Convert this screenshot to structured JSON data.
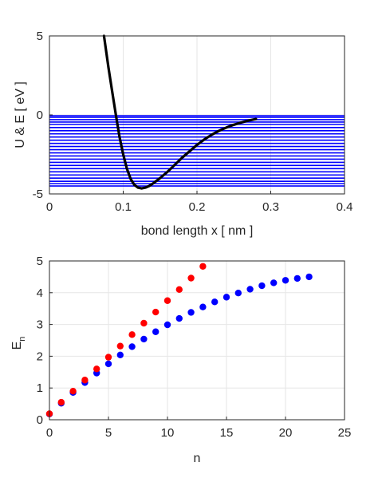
{
  "chart_data": [
    {
      "type": "line",
      "xlabel": "bond length x  [ nm ]",
      "ylabel": "U & E [ eV ]",
      "xlim": [
        0,
        0.4
      ],
      "ylim": [
        -5,
        5
      ],
      "xticks": [
        "0",
        "0.1",
        "0.2",
        "0.3",
        "0.4"
      ],
      "yticks": [
        "-5",
        "0",
        "5"
      ],
      "grid": true,
      "series": [
        {
          "kind": "potential-curve",
          "color": "#000000",
          "x": [
            0.074,
            0.08,
            0.085,
            0.09,
            0.095,
            0.1,
            0.105,
            0.11,
            0.115,
            0.12,
            0.125,
            0.13,
            0.135,
            0.14,
            0.15,
            0.16,
            0.17,
            0.18,
            0.19,
            0.2,
            0.21,
            0.22,
            0.23,
            0.24,
            0.25,
            0.26,
            0.27,
            0.28
          ],
          "y": [
            5.0,
            3.0,
            1.5,
            0.0,
            -1.4,
            -2.5,
            -3.4,
            -4.05,
            -4.42,
            -4.6,
            -4.65,
            -4.6,
            -4.5,
            -4.35,
            -4.0,
            -3.6,
            -3.15,
            -2.7,
            -2.3,
            -1.9,
            -1.55,
            -1.25,
            -1.0,
            -0.8,
            -0.62,
            -0.48,
            -0.36,
            -0.26
          ]
        }
      ],
      "energy_levels": {
        "color": "#0000ff",
        "x_range": [
          0,
          0.4
        ],
        "values": [
          -4.5,
          -4.35,
          -4.2,
          -4.0,
          -3.8,
          -3.6,
          -3.4,
          -3.2,
          -3.0,
          -2.8,
          -2.6,
          -2.4,
          -2.2,
          -2.0,
          -1.8,
          -1.6,
          -1.4,
          -1.2,
          -1.0,
          -0.8,
          -0.6,
          -0.45,
          -0.3,
          -0.15,
          -0.05
        ]
      }
    },
    {
      "type": "scatter",
      "xlabel": "n",
      "ylabel": "E",
      "ylabel_subscript": "n",
      "xlim": [
        0,
        25
      ],
      "ylim": [
        0,
        5
      ],
      "xticks": [
        "0",
        "5",
        "10",
        "15",
        "20",
        "25"
      ],
      "yticks": [
        "0",
        "1",
        "2",
        "3",
        "4",
        "5"
      ],
      "grid": true,
      "series": [
        {
          "color": "#0000ff",
          "x": [
            0,
            1,
            2,
            3,
            4,
            5,
            6,
            7,
            8,
            9,
            10,
            11,
            12,
            13,
            14,
            15,
            16,
            17,
            18,
            19,
            20,
            21,
            22
          ],
          "y": [
            0.18,
            0.52,
            0.86,
            1.17,
            1.47,
            1.76,
            2.04,
            2.3,
            2.54,
            2.77,
            2.99,
            3.19,
            3.38,
            3.55,
            3.71,
            3.86,
            3.99,
            4.11,
            4.22,
            4.31,
            4.39,
            4.45,
            4.5
          ]
        },
        {
          "color": "#ff0000",
          "x": [
            0,
            1,
            2,
            3,
            4,
            5,
            6,
            7,
            8,
            9,
            10,
            11,
            12,
            13
          ],
          "y": [
            0.19,
            0.55,
            0.9,
            1.25,
            1.6,
            1.97,
            2.32,
            2.68,
            3.04,
            3.39,
            3.75,
            4.1,
            4.46,
            4.83
          ]
        }
      ]
    }
  ]
}
